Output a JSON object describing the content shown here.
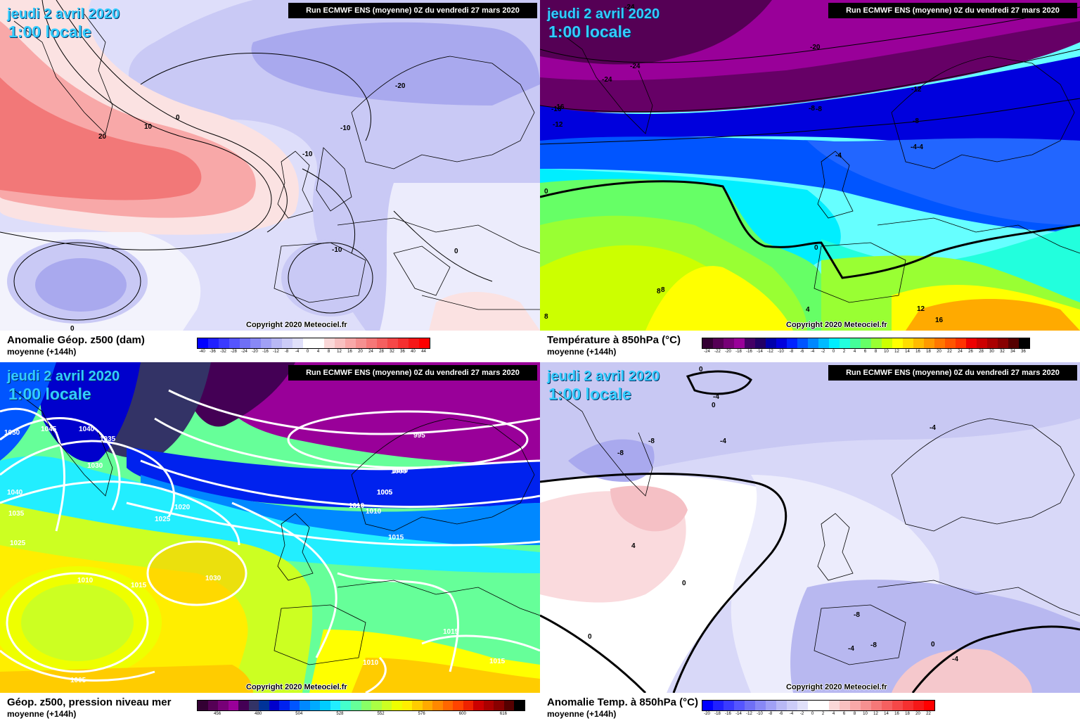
{
  "run_header": "Run ECMWF ENS (moyenne) 0Z du vendredi 27 mars 2020",
  "date_label": "jeudi 2 avril 2020",
  "time_label": "1:00 locale",
  "copyright": "Copyright 2020 Meteociel.fr",
  "subtitle": "moyenne  (+144h)",
  "panels": [
    {
      "id": "z500-anomaly",
      "caption": "Anomalie Géop. z500 (dam)",
      "legend_ticks": [
        "-40",
        "-36",
        "-32",
        "-28",
        "-24",
        "-20",
        "-16",
        "-12",
        "-8",
        "-4",
        "0",
        "4",
        "8",
        "12",
        "16",
        "20",
        "24",
        "28",
        "32",
        "36",
        "40",
        "44"
      ],
      "legend_colors": [
        "#0000ff",
        "#2020ff",
        "#3a3aff",
        "#5555ff",
        "#6f6ff5",
        "#8888f5",
        "#a0a0f5",
        "#b8b8f5",
        "#ccccf8",
        "#e0e0fa",
        "#ffffff",
        "#ffffff",
        "#fad8d8",
        "#f8c0c0",
        "#f8a8a8",
        "#f59090",
        "#f57878",
        "#f56060",
        "#f54848",
        "#f53030",
        "#f51818",
        "#ff0000"
      ],
      "contour_labels": [
        "0",
        "10",
        "20",
        "-10",
        "-20",
        "0",
        "-10",
        "0",
        "-10"
      ]
    },
    {
      "id": "t850",
      "caption": "Température à 850hPa (°C)",
      "legend_ticks": [
        "-24",
        "-22",
        "-20",
        "-18",
        "-16",
        "-14",
        "-12",
        "-10",
        "-8",
        "-6",
        "-4",
        "-2",
        "0",
        "2",
        "4",
        "6",
        "8",
        "10",
        "12",
        "14",
        "16",
        "18",
        "20",
        "22",
        "24",
        "26",
        "28",
        "30",
        "32",
        "34",
        "36"
      ],
      "legend_colors": [
        "#330033",
        "#550055",
        "#770077",
        "#990099",
        "#440066",
        "#220066",
        "#0000aa",
        "#0000dd",
        "#0022ff",
        "#0055ff",
        "#0088ff",
        "#00bbff",
        "#00eeff",
        "#22ffdd",
        "#44ff99",
        "#66ff66",
        "#99ff33",
        "#ccff00",
        "#ffff00",
        "#ffdd00",
        "#ffbb00",
        "#ff9900",
        "#ff7700",
        "#ff5500",
        "#ff3300",
        "#ee0000",
        "#cc0000",
        "#aa0000",
        "#880000",
        "#550000",
        "#000000"
      ],
      "contour_labels": [
        "-24",
        "-20",
        "-24",
        "-16",
        "-24",
        "-16",
        "-12",
        "-8",
        "-12",
        "-8",
        "-4",
        "0",
        "8",
        "4",
        "8",
        "0",
        "-4",
        "-8",
        "-4",
        "8",
        "12",
        "16"
      ]
    },
    {
      "id": "z500-mslp",
      "caption": "Géop. z500, pression niveau mer",
      "legend_ticks": [
        "456",
        "480",
        "504",
        "528",
        "552",
        "576",
        "600",
        "616"
      ],
      "legend_colors": [
        "#330033",
        "#550055",
        "#770077",
        "#990099",
        "#440055",
        "#333366",
        "#003399",
        "#0000cc",
        "#0022ee",
        "#0055ff",
        "#0088ff",
        "#00aaff",
        "#00ccff",
        "#22eeff",
        "#44ffcc",
        "#66ff99",
        "#88ff66",
        "#aaff44",
        "#ccff22",
        "#eeff00",
        "#ffee00",
        "#ffcc00",
        "#ffaa00",
        "#ff8800",
        "#ff6600",
        "#ff4400",
        "#ee2200",
        "#cc0000",
        "#aa0000",
        "#880000",
        "#550000",
        "#000000"
      ],
      "contour_labels": [
        "1045",
        "1040",
        "1035",
        "1030",
        "1020",
        "1025",
        "1010",
        "1015",
        "1010",
        "1030",
        "1000",
        "1005",
        "995",
        "1000",
        "1005",
        "1010",
        "1015",
        "1015",
        "1010",
        "1015",
        "1005",
        "1050",
        "1040",
        "1035",
        "1025"
      ]
    },
    {
      "id": "t850-anomaly",
      "caption": "Anomalie Temp. à 850hPa (°C)",
      "legend_ticks": [
        "-20",
        "-18",
        "-16",
        "-14",
        "-12",
        "-10",
        "-8",
        "-6",
        "-4",
        "-2",
        "0",
        "2",
        "4",
        "6",
        "8",
        "10",
        "12",
        "14",
        "16",
        "18",
        "20",
        "22"
      ],
      "legend_colors": [
        "#0000ff",
        "#2020ff",
        "#3a3aff",
        "#5555ff",
        "#6f6ff5",
        "#8888f5",
        "#a0a0f5",
        "#b8b8f5",
        "#ccccf8",
        "#e0e0fa",
        "#ffffff",
        "#ffffff",
        "#fad8d8",
        "#f8c0c0",
        "#f8a8a8",
        "#f59090",
        "#f57878",
        "#f56060",
        "#f54848",
        "#f53030",
        "#f51818",
        "#ff0000"
      ],
      "contour_labels": [
        "0",
        "-4",
        "0",
        "-4",
        "-8",
        "-8",
        "4",
        "0",
        "-4",
        "0",
        "-4",
        "-8",
        "-8",
        "0",
        "-4"
      ]
    }
  ]
}
